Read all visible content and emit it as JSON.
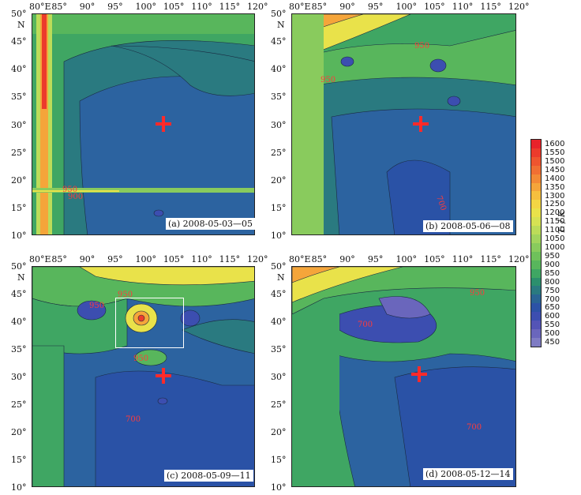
{
  "panels": [
    {
      "caption": "(a) 2008-05-03—05",
      "contour_labels": [
        "950",
        "900"
      ]
    },
    {
      "caption": "(b) 2008-05-06—08",
      "contour_labels": [
        "950",
        "950",
        "700"
      ]
    },
    {
      "caption": "(c) 2008-05-09—11",
      "contour_labels": [
        "950",
        "950",
        "950",
        "700"
      ]
    },
    {
      "caption": "(d) 2008-05-12—14",
      "contour_labels": [
        "950",
        "700",
        "700"
      ]
    }
  ],
  "x_ticks": [
    "80°E",
    "85°",
    "90°",
    "95°",
    "100°",
    "105°",
    "110°",
    "115°",
    "120°"
  ],
  "y_ticks": [
    "50°",
    "45°",
    "40°",
    "35°",
    "30°",
    "25°",
    "20°",
    "15°",
    "10°"
  ],
  "y_axis_letter": "N",
  "colorbar": {
    "unit": "Tₗ / K",
    "labels": [
      "1600",
      "1550",
      "1500",
      "1450",
      "1400",
      "1350",
      "1300",
      "1250",
      "1200",
      "1150",
      "1100",
      "1050",
      "1000",
      "950",
      "900",
      "850",
      "800",
      "750",
      "700",
      "650",
      "600",
      "550",
      "500",
      "450"
    ],
    "colors": [
      "#e8222a",
      "#ec3b2c",
      "#ef552f",
      "#f16f33",
      "#f38a36",
      "#f5a53a",
      "#f6bf3e",
      "#f3d544",
      "#e9e24a",
      "#d6e253",
      "#bcdc59",
      "#a2d45d",
      "#89cb5d",
      "#6fc15b",
      "#58b65c",
      "#3fa663",
      "#2c8f6d",
      "#2a7a80",
      "#2a6494",
      "#2c52a6",
      "#3c4eb0",
      "#5454b6",
      "#6a66bc",
      "#7f7cc4"
    ]
  },
  "marker": {
    "lon": 103.4,
    "lat": 30.0
  }
}
